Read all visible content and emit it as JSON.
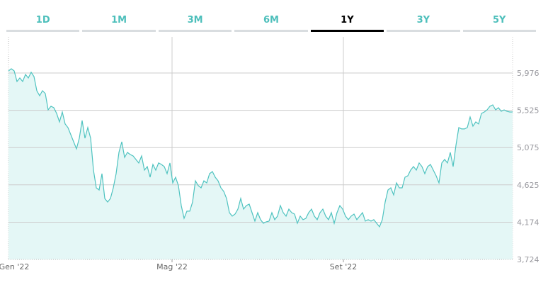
{
  "tabs": [
    {
      "label": "1D",
      "active": false
    },
    {
      "label": "1M",
      "active": false
    },
    {
      "label": "3M",
      "active": false
    },
    {
      "label": "6M",
      "active": false
    },
    {
      "label": "1Y",
      "active": true
    },
    {
      "label": "3Y",
      "active": false
    },
    {
      "label": "5Y",
      "active": false
    }
  ],
  "chart_data": {
    "type": "area",
    "title": "",
    "xlabel": "",
    "ylabel": "",
    "ylim": [
      3724,
      6200
    ],
    "yticks": [
      {
        "value": 3724,
        "label": "3,724"
      },
      {
        "value": 4174,
        "label": "4,174"
      },
      {
        "value": 4625,
        "label": "4,625"
      },
      {
        "value": 5075,
        "label": "5,075"
      },
      {
        "value": 5525,
        "label": "5,525"
      },
      {
        "value": 5976,
        "label": "5,976"
      }
    ],
    "xticks": [
      {
        "index": 2,
        "label": "Gen '22",
        "gridline": false
      },
      {
        "index": 57.75,
        "label": "Mag '22",
        "gridline": true
      },
      {
        "index": 118.25,
        "label": "Set '22",
        "gridline": true
      }
    ],
    "grid": true,
    "colors": {
      "line": "#4fc3c0",
      "fill": "#e4f7f6",
      "grid": "#cccccc",
      "active_tab": "#000000",
      "tab": "#4dbfbb"
    },
    "values": [
      6002,
      6027,
      6002,
      5873,
      5916,
      5873,
      5959,
      5916,
      5985,
      5933,
      5762,
      5702,
      5762,
      5728,
      5531,
      5574,
      5556,
      5488,
      5385,
      5505,
      5360,
      5317,
      5231,
      5145,
      5060,
      5188,
      5402,
      5188,
      5317,
      5188,
      4803,
      4589,
      4563,
      4760,
      4460,
      4418,
      4460,
      4589,
      4760,
      5017,
      5145,
      4957,
      5017,
      4991,
      4974,
      4931,
      4889,
      4974,
      4803,
      4846,
      4717,
      4871,
      4803,
      4889,
      4871,
      4846,
      4760,
      4889,
      4649,
      4717,
      4615,
      4375,
      4221,
      4307,
      4307,
      4418,
      4674,
      4615,
      4589,
      4674,
      4649,
      4760,
      4786,
      4717,
      4674,
      4589,
      4546,
      4460,
      4289,
      4247,
      4272,
      4332,
      4460,
      4332,
      4375,
      4392,
      4289,
      4187,
      4289,
      4204,
      4161,
      4178,
      4187,
      4289,
      4204,
      4247,
      4375,
      4289,
      4247,
      4332,
      4289,
      4272,
      4161,
      4247,
      4204,
      4221,
      4289,
      4332,
      4247,
      4204,
      4289,
      4332,
      4247,
      4204,
      4289,
      4161,
      4289,
      4375,
      4332,
      4247,
      4204,
      4247,
      4272,
      4204,
      4247,
      4289,
      4187,
      4204,
      4187,
      4204,
      4161,
      4118,
      4204,
      4418,
      4563,
      4589,
      4503,
      4649,
      4589,
      4589,
      4717,
      4734,
      4803,
      4846,
      4803,
      4889,
      4846,
      4760,
      4846,
      4871,
      4803,
      4734,
      4649,
      4889,
      4931,
      4889,
      5017,
      4846,
      5103,
      5317,
      5300,
      5300,
      5317,
      5445,
      5334,
      5385,
      5360,
      5488,
      5505,
      5531,
      5574,
      5591,
      5531,
      5556,
      5514,
      5531,
      5514,
      5505,
      5505
    ]
  }
}
